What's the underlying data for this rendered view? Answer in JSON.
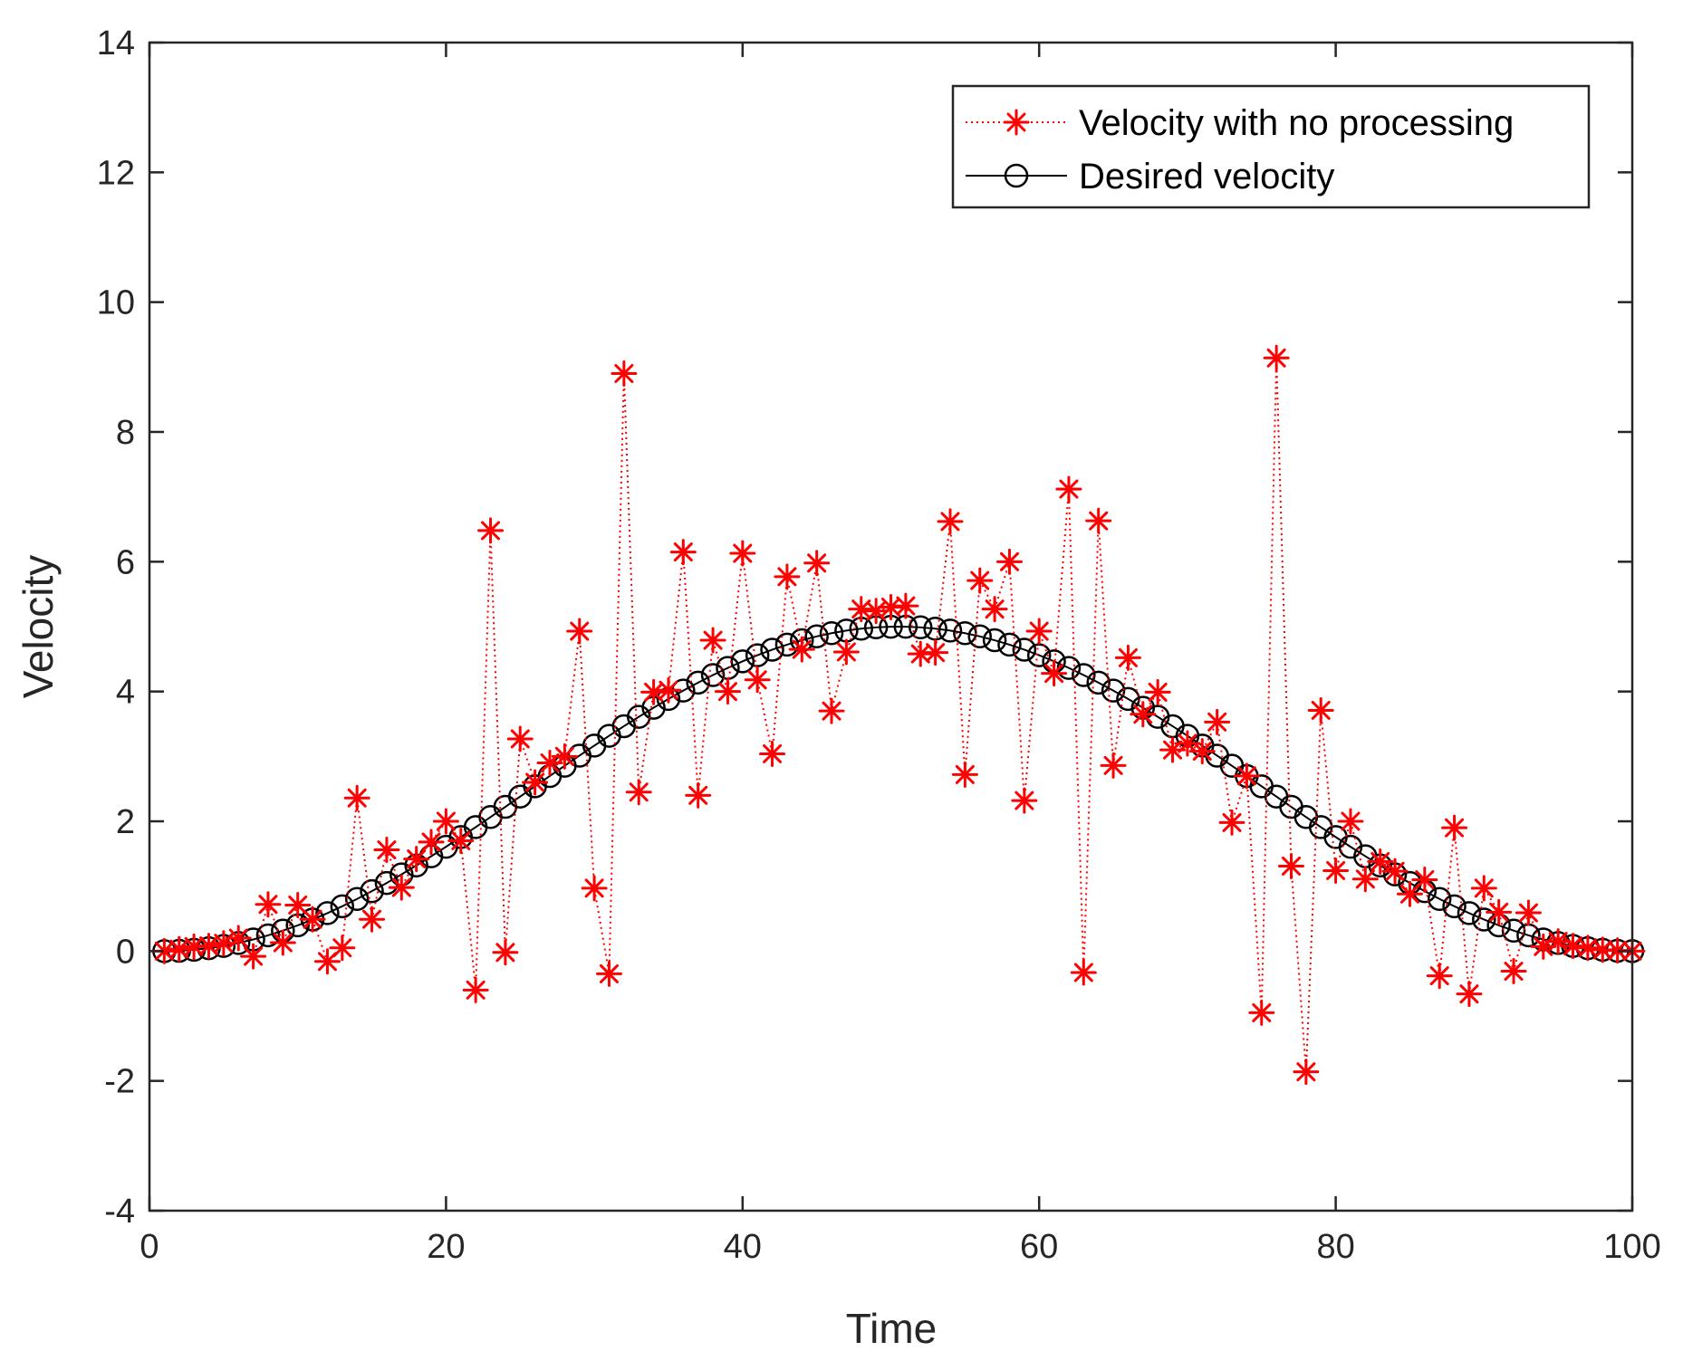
{
  "chart_data": {
    "type": "line",
    "xlabel": "Time",
    "ylabel": "Velocity",
    "xlim": [
      0,
      100
    ],
    "ylim": [
      -4,
      14
    ],
    "xticks": [
      0,
      20,
      40,
      60,
      80,
      100
    ],
    "yticks": [
      -4,
      -2,
      0,
      2,
      4,
      6,
      8,
      10,
      12,
      14
    ],
    "grid": false,
    "legend_position": "top-right",
    "x": [
      1,
      2,
      3,
      4,
      5,
      6,
      7,
      8,
      9,
      10,
      11,
      12,
      13,
      14,
      15,
      16,
      17,
      18,
      19,
      20,
      21,
      22,
      23,
      24,
      25,
      26,
      27,
      28,
      29,
      30,
      31,
      32,
      33,
      34,
      35,
      36,
      37,
      38,
      39,
      40,
      41,
      42,
      43,
      44,
      45,
      46,
      47,
      48,
      49,
      50,
      51,
      52,
      53,
      54,
      55,
      56,
      57,
      58,
      59,
      60,
      61,
      62,
      63,
      64,
      65,
      66,
      67,
      68,
      69,
      70,
      71,
      72,
      73,
      74,
      75,
      76,
      77,
      78,
      79,
      80,
      81,
      82,
      83,
      84,
      85,
      86,
      87,
      88,
      89,
      90,
      91,
      92,
      93,
      94,
      95,
      96,
      97,
      98,
      99,
      100
    ],
    "series": [
      {
        "name": "Velocity with no processing",
        "color": "#ff0000",
        "line_style": "dotted",
        "marker": "asterisk",
        "values": [
          0.0,
          0.03,
          0.07,
          0.08,
          0.12,
          0.2,
          -0.08,
          0.72,
          0.13,
          0.71,
          0.49,
          -0.16,
          0.05,
          2.36,
          0.49,
          1.56,
          0.98,
          1.42,
          1.68,
          2.0,
          1.7,
          -0.6,
          6.48,
          -0.02,
          3.27,
          2.6,
          2.9,
          3.0,
          4.93,
          0.97,
          -0.35,
          8.9,
          2.45,
          3.99,
          4.02,
          6.15,
          2.4,
          4.79,
          4.0,
          6.13,
          4.18,
          3.04,
          5.77,
          4.65,
          5.98,
          3.7,
          4.61,
          5.27,
          5.24,
          5.3,
          5.32,
          4.58,
          4.6,
          6.62,
          2.72,
          5.71,
          5.27,
          6.0,
          2.32,
          4.93,
          4.28,
          7.12,
          -0.33,
          6.63,
          2.86,
          4.52,
          3.65,
          3.99,
          3.1,
          3.2,
          3.08,
          3.53,
          1.98,
          2.7,
          -0.95,
          9.14,
          1.31,
          -1.86,
          3.71,
          1.24,
          2.0,
          1.11,
          1.38,
          1.23,
          0.88,
          1.1,
          -0.38,
          1.9,
          -0.66,
          0.97,
          0.6,
          -0.31,
          0.59,
          0.07,
          0.15,
          0.08,
          0.05,
          0.02,
          0.01,
          0.0
        ]
      },
      {
        "name": "Desired velocity",
        "color": "#000000",
        "line_style": "solid",
        "marker": "circle",
        "formula": "2.5*(1 - cos(2*pi*(t-1)/99))"
      }
    ]
  }
}
